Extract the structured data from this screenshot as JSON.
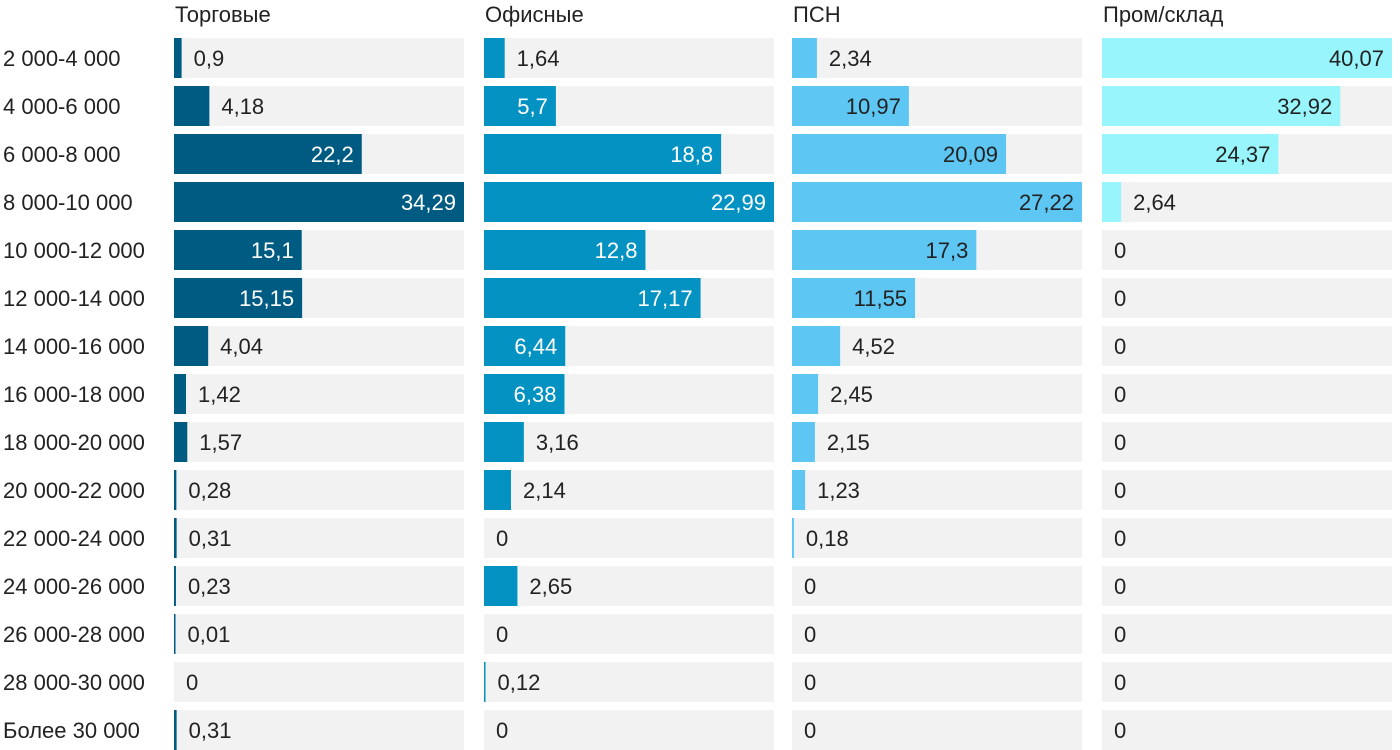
{
  "chart_data": {
    "type": "bar",
    "orientation": "horizontal",
    "layout": "small-multiples",
    "categories": [
      "2 000-4 000",
      "4 000-6 000",
      "6 000-8 000",
      "8 000-10 000",
      "10 000-12 000",
      "12 000-14 000",
      "14 000-16 000",
      "16 000-18 000",
      "18 000-20 000",
      "20 000-22 000",
      "22 000-24 000",
      "24 000-26 000",
      "26 000-28 000",
      "28 000-30 000",
      "Более 30 000"
    ],
    "series": [
      {
        "name": "Торговые",
        "color": "#005b82",
        "max": 34.29,
        "values": [
          0.9,
          4.18,
          22.2,
          34.29,
          15.1,
          15.15,
          4.04,
          1.42,
          1.57,
          0.28,
          0.31,
          0.23,
          0.01,
          0,
          0.31
        ],
        "labels": [
          "0,9",
          "4,18",
          "22,2",
          "34,29",
          "15,1",
          "15,15",
          "4,04",
          "1,42",
          "1,57",
          "0,28",
          "0,31",
          "0,23",
          "0,01",
          "0",
          "0,31"
        ]
      },
      {
        "name": "Офисные",
        "color": "#0492c2",
        "max": 22.99,
        "values": [
          1.64,
          5.7,
          18.8,
          22.99,
          12.8,
          17.17,
          6.44,
          6.38,
          3.16,
          2.14,
          0,
          2.65,
          0,
          0.12,
          0
        ],
        "labels": [
          "1,64",
          "5,7",
          "18,8",
          "22,99",
          "12,8",
          "17,17",
          "6,44",
          "6,38",
          "3,16",
          "2,14",
          "0",
          "2,65",
          "0",
          "0,12",
          "0"
        ]
      },
      {
        "name": "ПСН",
        "color": "#5ec6f2",
        "max": 27.22,
        "values": [
          2.34,
          10.97,
          20.09,
          27.22,
          17.3,
          11.55,
          4.52,
          2.45,
          2.15,
          1.23,
          0.18,
          0,
          0,
          0,
          0
        ],
        "labels": [
          "2,34",
          "10,97",
          "20,09",
          "27,22",
          "17,3",
          "11,55",
          "4,52",
          "2,45",
          "2,15",
          "1,23",
          "0,18",
          "0",
          "0",
          "0",
          "0"
        ]
      },
      {
        "name": "Пром/склад",
        "color": "#98f5fc",
        "max": 40.07,
        "values": [
          40.07,
          32.92,
          24.37,
          2.64,
          0,
          0,
          0,
          0,
          0,
          0,
          0,
          0,
          0,
          0,
          0
        ],
        "labels": [
          "40,07",
          "32,92",
          "24,37",
          "2,64",
          "0",
          "0",
          "0",
          "0",
          "0",
          "0",
          "0",
          "0",
          "0",
          "0",
          "0"
        ]
      }
    ],
    "grid": false,
    "legend": "none"
  }
}
